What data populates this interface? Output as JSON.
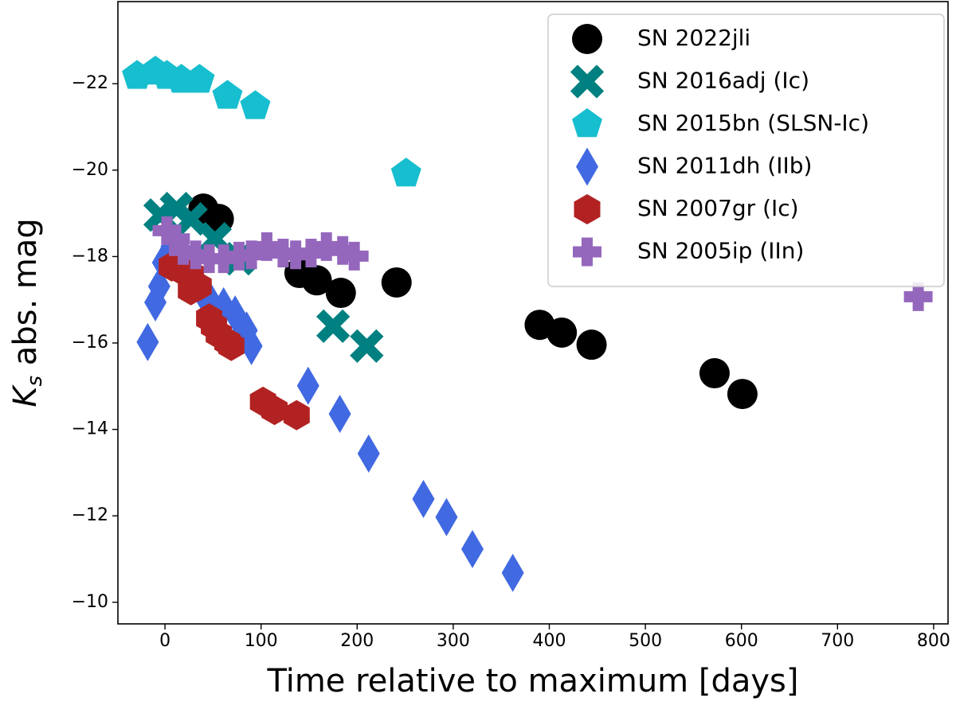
{
  "chart_data": {
    "type": "scatter",
    "xlabel": "Time relative to maximum [days]",
    "ylabel_parts": [
      "K",
      "s",
      " abs. mag"
    ],
    "xlim": [
      -49,
      815
    ],
    "ylim": [
      -9.5,
      -23.9
    ],
    "xticks": [
      0,
      100,
      200,
      300,
      400,
      500,
      600,
      700,
      800
    ],
    "yticks": [
      {
        "value": -22,
        "label": "−22"
      },
      {
        "value": -20,
        "label": "−20"
      },
      {
        "value": -18,
        "label": "−18"
      },
      {
        "value": -16,
        "label": "−16"
      },
      {
        "value": -14,
        "label": "−14"
      },
      {
        "value": -12,
        "label": "−12"
      },
      {
        "value": -10,
        "label": "−10"
      }
    ],
    "legend": "upper right",
    "series": [
      {
        "name": "SN 2022jli",
        "color": "#000000",
        "marker": "circle",
        "x": [
          40,
          56,
          140,
          158,
          183,
          241,
          390,
          413,
          444,
          572,
          601
        ],
        "values": [
          -19.11,
          -18.87,
          -17.62,
          -17.45,
          -17.16,
          -17.4,
          -16.42,
          -16.24,
          -15.96,
          -15.3,
          -14.82
        ]
      },
      {
        "name": "SN 2016adj (Ic)",
        "color": "#008080",
        "marker": "x",
        "x": [
          -5,
          12,
          27,
          52,
          77,
          175,
          210
        ],
        "values": [
          -18.96,
          -19.11,
          -18.87,
          -18.41,
          -17.95,
          -16.39,
          -15.93
        ]
      },
      {
        "name": "SN 2015bn (SLSN-Ic)",
        "color": "#17becf",
        "marker": "pentagon",
        "x": [
          -29,
          -10,
          2,
          17,
          36,
          65,
          94,
          251
        ],
        "values": [
          -22.18,
          -22.28,
          -22.18,
          -22.09,
          -22.09,
          -21.72,
          -21.48,
          -19.92
        ]
      },
      {
        "name": "SN 2011dh (IIb)",
        "color": "#4169e1",
        "marker": "diamond",
        "x": [
          -18,
          -10,
          -6,
          -2,
          7,
          15,
          27,
          40,
          48,
          61,
          73,
          85,
          90,
          149,
          182,
          212,
          269,
          293,
          320,
          362
        ],
        "values": [
          -16.02,
          -16.94,
          -17.31,
          -17.86,
          -18.23,
          -17.86,
          -17.4,
          -17.12,
          -16.94,
          -16.85,
          -16.66,
          -16.29,
          -15.93,
          -15.01,
          -14.36,
          -13.44,
          -12.39,
          -11.97,
          -11.23,
          -10.68
        ]
      },
      {
        "name": "SN 2007gr (Ic)",
        "color": "#b22222",
        "marker": "hexagon",
        "x": [
          7,
          17,
          27,
          27,
          35,
          46,
          51,
          56,
          65,
          69,
          102,
          114,
          137
        ],
        "values": [
          -17.77,
          -17.68,
          -17.59,
          -17.22,
          -17.31,
          -16.57,
          -16.39,
          -16.2,
          -16.02,
          -15.93,
          -14.64,
          -14.45,
          -14.33
        ]
      },
      {
        "name": "SN 2005ip (IIn)",
        "color": "#9467bd",
        "marker": "plus",
        "x": [
          2,
          11,
          19,
          32,
          46,
          61,
          77,
          90,
          106,
          123,
          136,
          152,
          168,
          185,
          197,
          784
        ],
        "values": [
          -18.6,
          -18.41,
          -18.14,
          -18.04,
          -17.95,
          -17.95,
          -18.01,
          -18.04,
          -18.23,
          -18.08,
          -18.04,
          -18.08,
          -18.23,
          -18.14,
          -18.01,
          -17.07
        ]
      }
    ]
  }
}
